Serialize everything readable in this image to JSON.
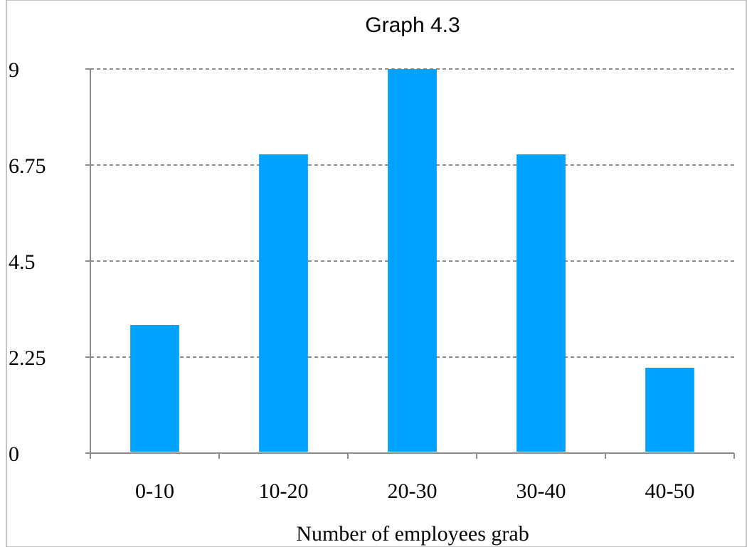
{
  "chart_data": {
    "type": "bar",
    "title": "Graph 4.3",
    "xlabel": "Number of employees grab",
    "ylabel": "",
    "categories": [
      "0-10",
      "10-20",
      "20-30",
      "30-40",
      "40-50"
    ],
    "values": [
      3,
      7,
      9,
      7,
      2
    ],
    "ylim": [
      0,
      9
    ],
    "yticks": [
      "0",
      "2.25",
      "4.5",
      "6.75",
      "9"
    ],
    "grid": true,
    "bar_color": "#00a2ff",
    "grid_color": "#8c8c8c"
  }
}
